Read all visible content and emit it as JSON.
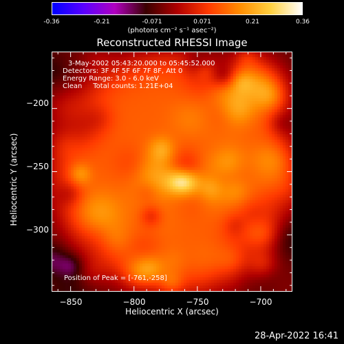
{
  "colorbar": {
    "ticks": [
      "-0.36",
      "-0.21",
      "-0.071",
      "0.071",
      "0.21",
      "0.36"
    ],
    "units": "(photons cm⁻² s⁻¹ asec⁻²)",
    "colors": [
      "#0000ff",
      "#5a00ff",
      "#b000c0",
      "#3a0000",
      "#b00000",
      "#ff3a00",
      "#ff8c00",
      "#ffd040",
      "#ffffff"
    ]
  },
  "chart_data": {
    "type": "heatmap",
    "title": "Reconstructed RHESSI Image",
    "xlabel": "Heliocentric X (arcsec)",
    "ylabel": "Heliocentric Y (arcsec)",
    "x_ticks": [
      "−850",
      "−800",
      "−750",
      "−700"
    ],
    "x_tick_values": [
      -850,
      -800,
      -750,
      -700
    ],
    "y_ticks": [
      "−200",
      "−250",
      "−300"
    ],
    "y_tick_values": [
      -200,
      -250,
      -300
    ],
    "xlim": [
      -865,
      -675
    ],
    "ylim": [
      -345,
      -155
    ],
    "zlim": [
      -0.36,
      0.36
    ],
    "peak": [
      -761,
      -258
    ],
    "annotations": [
      "3-May-2002 05:43:20.000 to 05:45:52.000",
      "Detectors: 3F 4F 5F 6F 7F 8F, Att 0",
      "Energy Range: 3.0 - 6.0 keV",
      "Clean     Total counts: 1.21E+04"
    ],
    "peak_label": "Position of Peak = [-761,-258]"
  },
  "timestamp": "28-Apr-2022 16:41"
}
